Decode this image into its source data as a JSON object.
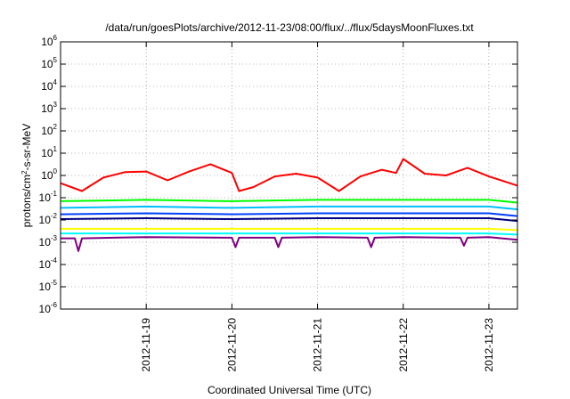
{
  "chart_data": {
    "type": "line",
    "title": "/data/run/goesPlots/archive/2012-11-23/08:00/flux/../flux/5daysMoonFluxes.txt",
    "xlabel": "Coordinated Universal Time (UTC)",
    "ylabel_base": "protons/cm",
    "ylabel_sup": "2",
    "ylabel_rest": "-s-sr-MeV",
    "yscale": "log",
    "ylim": [
      1e-06,
      1000000
    ],
    "xlim": [
      "2012-11-18 00:00",
      "2012-11-23 08:00"
    ],
    "grid": true,
    "x_ticks": [
      "2012-11-19",
      "2012-11-20",
      "2012-11-21",
      "2012-11-22",
      "2012-11-23"
    ],
    "y_ticks": [
      {
        "base": "10",
        "exp": "-6"
      },
      {
        "base": "10",
        "exp": "-5"
      },
      {
        "base": "10",
        "exp": "-4"
      },
      {
        "base": "10",
        "exp": "-3"
      },
      {
        "base": "10",
        "exp": "-2"
      },
      {
        "base": "10",
        "exp": "-1"
      },
      {
        "base": "10",
        "exp": "0"
      },
      {
        "base": "10",
        "exp": "1"
      },
      {
        "base": "10",
        "exp": "2"
      },
      {
        "base": "10",
        "exp": "3"
      },
      {
        "base": "10",
        "exp": "4"
      },
      {
        "base": "10",
        "exp": "5"
      },
      {
        "base": "10",
        "exp": "6"
      }
    ],
    "series": [
      {
        "color": "#ff0000",
        "x": [
          "2012-11-18 00:00",
          "2012-11-18 06:00",
          "2012-11-18 12:00",
          "2012-11-18 18:00",
          "2012-11-19 00:00",
          "2012-11-19 06:00",
          "2012-11-19 12:00",
          "2012-11-19 18:00",
          "2012-11-20 00:00",
          "2012-11-20 02:00",
          "2012-11-20 06:00",
          "2012-11-20 12:00",
          "2012-11-20 18:00",
          "2012-11-21 00:00",
          "2012-11-21 06:00",
          "2012-11-21 12:00",
          "2012-11-21 18:00",
          "2012-11-21 22:00",
          "2012-11-22 00:00",
          "2012-11-22 06:00",
          "2012-11-22 12:00",
          "2012-11-22 18:00",
          "2012-11-23 00:00",
          "2012-11-23 08:00"
        ],
        "y": [
          0.45,
          0.2,
          0.8,
          1.4,
          1.5,
          0.6,
          1.5,
          3.2,
          1.3,
          0.2,
          0.3,
          0.9,
          1.2,
          0.8,
          0.2,
          0.9,
          1.8,
          1.3,
          5.5,
          1.2,
          1.0,
          2.2,
          0.9,
          0.35
        ]
      },
      {
        "color": "#00ff00",
        "x": [
          "2012-11-18 00:00",
          "2012-11-19 00:00",
          "2012-11-20 00:00",
          "2012-11-21 00:00",
          "2012-11-22 00:00",
          "2012-11-23 00:00",
          "2012-11-23 08:00"
        ],
        "y": [
          0.07,
          0.08,
          0.07,
          0.08,
          0.08,
          0.08,
          0.06
        ]
      },
      {
        "color": "#00bfff",
        "x": [
          "2012-11-18 00:00",
          "2012-11-19 00:00",
          "2012-11-20 00:00",
          "2012-11-21 00:00",
          "2012-11-22 00:00",
          "2012-11-23 00:00",
          "2012-11-23 08:00"
        ],
        "y": [
          0.035,
          0.04,
          0.035,
          0.04,
          0.04,
          0.04,
          0.03
        ]
      },
      {
        "color": "#0040ff",
        "x": [
          "2012-11-18 00:00",
          "2012-11-19 00:00",
          "2012-11-20 00:00",
          "2012-11-21 00:00",
          "2012-11-22 00:00",
          "2012-11-23 00:00",
          "2012-11-23 08:00"
        ],
        "y": [
          0.018,
          0.02,
          0.018,
          0.02,
          0.02,
          0.02,
          0.015
        ]
      },
      {
        "color": "#000080",
        "x": [
          "2012-11-18 00:00",
          "2012-11-19 00:00",
          "2012-11-20 00:00",
          "2012-11-21 00:00",
          "2012-11-22 00:00",
          "2012-11-23 00:00",
          "2012-11-23 08:00"
        ],
        "y": [
          0.011,
          0.012,
          0.011,
          0.012,
          0.012,
          0.012,
          0.009
        ]
      },
      {
        "color": "#ffff00",
        "x": [
          "2012-11-18 00:00",
          "2012-11-19 00:00",
          "2012-11-20 00:00",
          "2012-11-21 00:00",
          "2012-11-22 00:00",
          "2012-11-23 00:00",
          "2012-11-23 08:00"
        ],
        "y": [
          0.004,
          0.004,
          0.004,
          0.004,
          0.004,
          0.004,
          0.0035
        ]
      },
      {
        "color": "#00ffff",
        "x": [
          "2012-11-18 00:00",
          "2012-11-19 00:00",
          "2012-11-20 00:00",
          "2012-11-21 00:00",
          "2012-11-22 00:00",
          "2012-11-23 00:00",
          "2012-11-23 08:00"
        ],
        "y": [
          0.0025,
          0.0025,
          0.0025,
          0.0025,
          0.0025,
          0.0025,
          0.0022
        ]
      },
      {
        "color": "#800080",
        "x": [
          "2012-11-18 00:00",
          "2012-11-18 04:00",
          "2012-11-18 05:00",
          "2012-11-18 06:00",
          "2012-11-19 00:00",
          "2012-11-20 00:00",
          "2012-11-20 01:00",
          "2012-11-20 02:00",
          "2012-11-20 12:00",
          "2012-11-20 13:00",
          "2012-11-20 14:00",
          "2012-11-21 00:00",
          "2012-11-21 14:00",
          "2012-11-21 15:00",
          "2012-11-21 16:00",
          "2012-11-22 00:00",
          "2012-11-22 16:00",
          "2012-11-22 17:00",
          "2012-11-22 18:00",
          "2012-11-23 00:00",
          "2012-11-23 08:00"
        ],
        "y": [
          0.0015,
          0.0015,
          0.0004,
          0.0015,
          0.0017,
          0.0016,
          0.0006,
          0.0016,
          0.0016,
          0.0006,
          0.0016,
          0.0017,
          0.0016,
          0.0006,
          0.0016,
          0.0017,
          0.0016,
          0.0007,
          0.0016,
          0.0017,
          0.0013
        ]
      }
    ]
  }
}
